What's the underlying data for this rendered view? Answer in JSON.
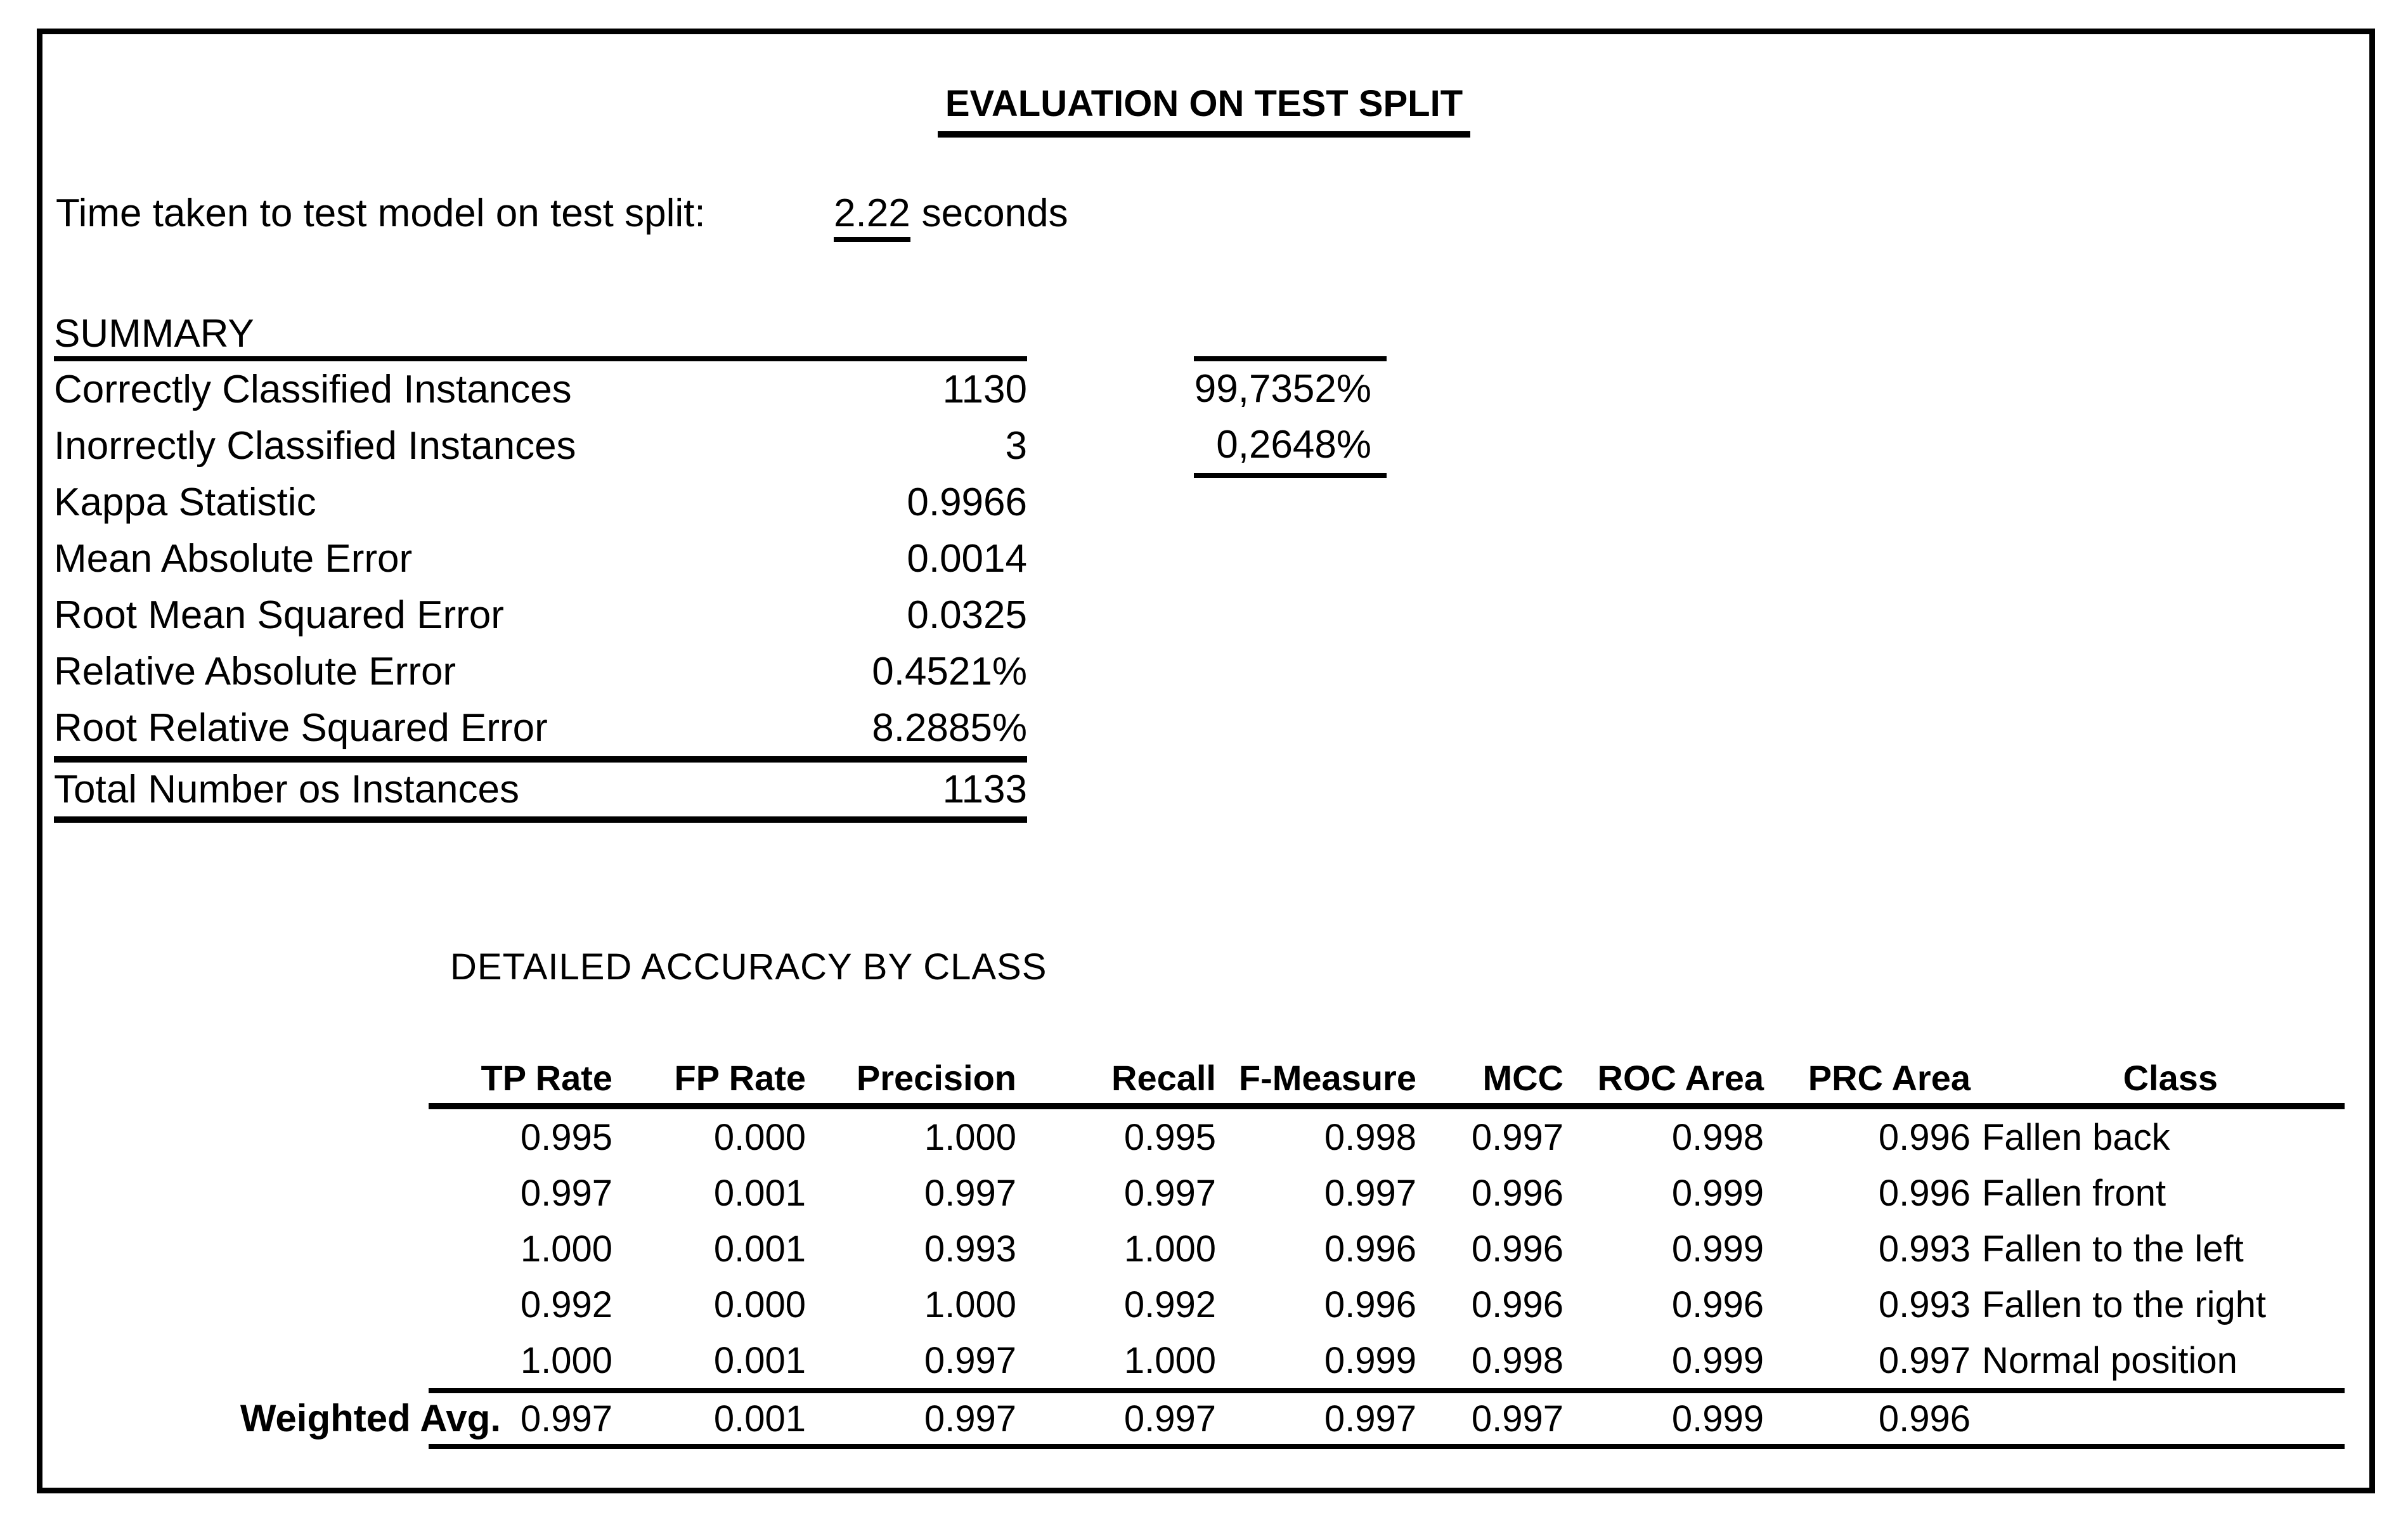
{
  "title": "EVALUATION ON TEST SPLIT",
  "time": {
    "label": "Time taken to test model on test split:",
    "value": "2.22",
    "unit": "seconds"
  },
  "summary": {
    "heading": "SUMMARY",
    "rows": [
      {
        "label": "Correctly Classified Instances",
        "value": "1130"
      },
      {
        "label": "Inorrectly Classified Instances",
        "value": "3"
      },
      {
        "label": "Kappa Statistic",
        "value": "0.9966"
      },
      {
        "label": "Mean Absolute Error",
        "value": "0.0014"
      },
      {
        "label": "Root Mean Squared Error",
        "value": "0.0325"
      },
      {
        "label": "Relative Absolute Error",
        "value": "0.4521%"
      },
      {
        "label": "Root Relative Squared Error",
        "value": "8.2885%"
      }
    ],
    "total": {
      "label": "Total Number os Instances",
      "value": "1133"
    },
    "percentages": [
      "99,7352%",
      "0,2648%"
    ]
  },
  "detail": {
    "heading": "DETAILED ACCURACY BY CLASS",
    "columns": [
      "TP Rate",
      "FP Rate",
      "Precision",
      "Recall",
      "F-Measure",
      "MCC",
      "ROC Area",
      "PRC Area",
      "Class"
    ],
    "rows": [
      [
        "0.995",
        "0.000",
        "1.000",
        "0.995",
        "0.998",
        "0.997",
        "0.998",
        "0.996",
        "Fallen back"
      ],
      [
        "0.997",
        "0.001",
        "0.997",
        "0.997",
        "0.997",
        "0.996",
        "0.999",
        "0.996",
        "Fallen front"
      ],
      [
        "1.000",
        "0.001",
        "0.993",
        "1.000",
        "0.996",
        "0.996",
        "0.999",
        "0.993",
        "Fallen to the left"
      ],
      [
        "0.992",
        "0.000",
        "1.000",
        "0.992",
        "0.996",
        "0.996",
        "0.996",
        "0.993",
        "Fallen to the right"
      ],
      [
        "1.000",
        "0.001",
        "0.997",
        "1.000",
        "0.999",
        "0.998",
        "0.999",
        "0.997",
        "Normal position"
      ]
    ],
    "weighted_avg": {
      "label": "Weighted Avg.",
      "values": [
        "0.997",
        "0.001",
        "0.997",
        "0.997",
        "0.997",
        "0.997",
        "0.999",
        "0.996",
        ""
      ]
    }
  },
  "colors": {
    "text": "#000000",
    "background": "#ffffff",
    "border": "#000000"
  }
}
